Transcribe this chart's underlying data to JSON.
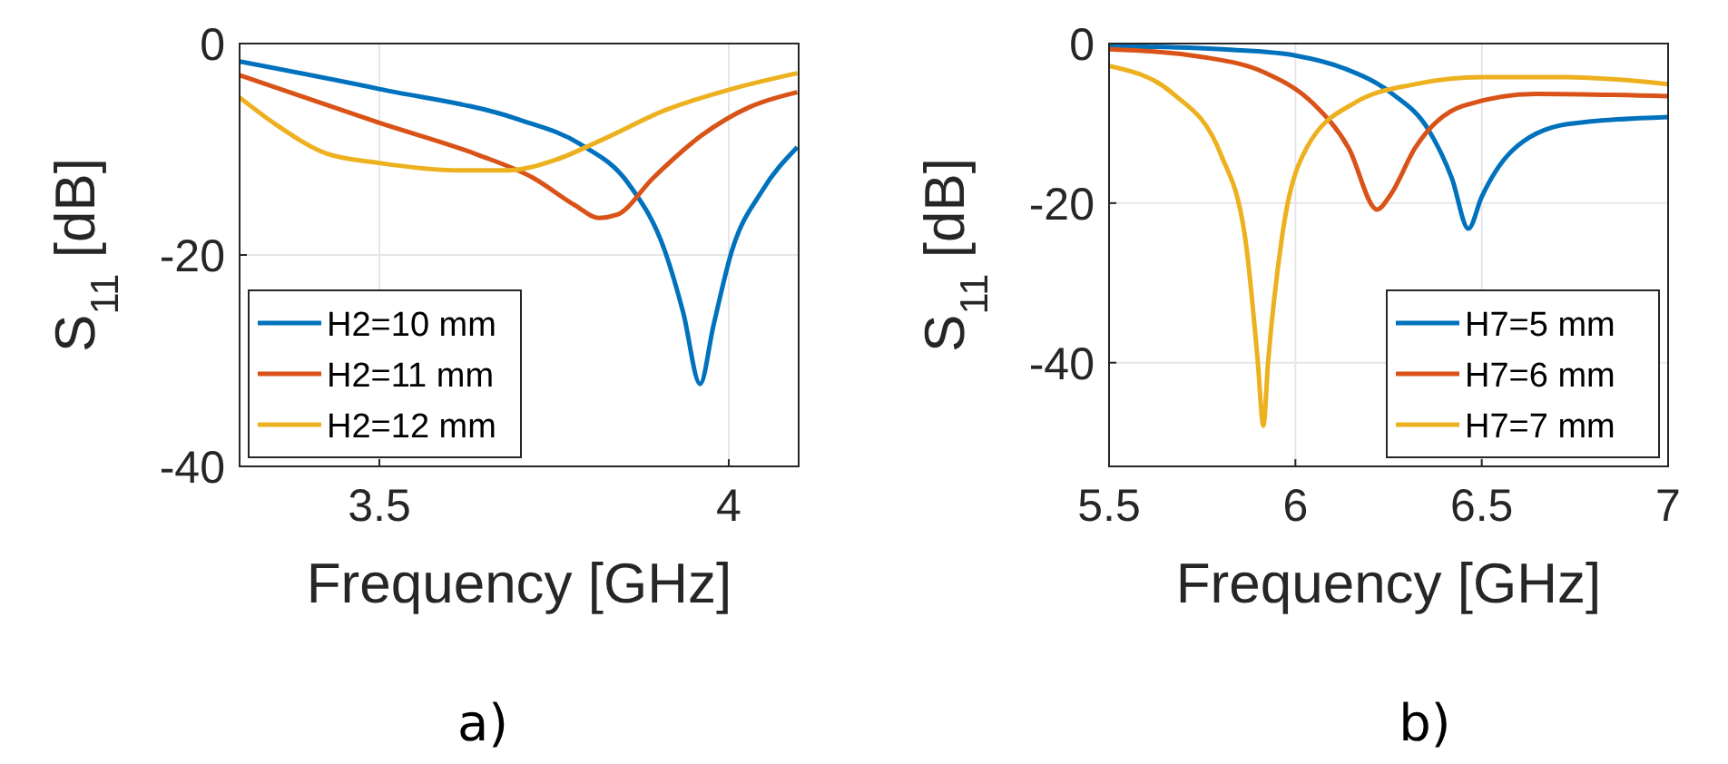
{
  "chart_data": [
    {
      "type": "line",
      "xlabel": "Frequency [GHz]",
      "ylabel": "S$_{11}$ [dB]",
      "xlim": [
        3.3,
        4.1
      ],
      "ylim": [
        -40,
        0
      ],
      "xticks": [
        3.5,
        4
      ],
      "yticks": [
        -40,
        -20,
        0
      ],
      "grid": true,
      "legend": "bottom left",
      "annotations": [
        "a)"
      ],
      "series": [
        {
          "name": "H2=10 mm",
          "color": "#0072bd",
          "x": [
            3.3,
            3.5,
            3.7,
            3.787,
            3.857,
            3.909,
            3.935,
            3.959,
            3.978,
            4.004,
            4.048,
            4.098
          ],
          "values": [
            -1.7,
            -4.3,
            -7.2,
            -9.5,
            -13.3,
            -19.7,
            -25.5,
            -32.2,
            -26.7,
            -19.7,
            -13.9,
            -9.8
          ]
        },
        {
          "name": "H2=11 mm",
          "color": "#d95319",
          "x": [
            3.3,
            3.5,
            3.64,
            3.72,
            3.78,
            3.814,
            3.84,
            3.892,
            3.961,
            4.03,
            4.098
          ],
          "values": [
            -3.0,
            -7.5,
            -10.5,
            -12.7,
            -15.3,
            -16.5,
            -16.2,
            -12.7,
            -8.7,
            -6.0,
            -4.6
          ]
        },
        {
          "name": "H2=12 mm",
          "color": "#edb120",
          "x": [
            3.3,
            3.355,
            3.424,
            3.5,
            3.614,
            3.683,
            3.752,
            3.822,
            3.909,
            4.004,
            4.098
          ],
          "values": [
            -5.1,
            -7.8,
            -10.4,
            -11.3,
            -12.0,
            -12.0,
            -11.0,
            -9.0,
            -6.3,
            -4.3,
            -2.8
          ]
        }
      ]
    },
    {
      "type": "line",
      "xlabel": "Frequency [GHz]",
      "ylabel": "S$_{11}$ [dB]",
      "xlim": [
        5.5,
        7
      ],
      "ylim": [
        -53,
        0
      ],
      "xticks": [
        5.5,
        6,
        6.5,
        7
      ],
      "yticks": [
        -40,
        -20,
        0
      ],
      "grid": true,
      "legend": "bottom right",
      "annotations": [
        "b)"
      ],
      "series": [
        {
          "name": "H7=5 mm",
          "color": "#0072bd",
          "x": [
            5.5,
            5.834,
            6,
            6.13,
            6.26,
            6.357,
            6.42,
            6.464,
            6.5,
            6.58,
            6.73,
            7
          ],
          "values": [
            -0.3,
            -0.8,
            -1.5,
            -3.1,
            -6.3,
            -10.8,
            -16.9,
            -23.2,
            -19.2,
            -13.5,
            -10.1,
            -9.2
          ]
        },
        {
          "name": "H7=6 mm",
          "color": "#d95319",
          "x": [
            5.5,
            5.753,
            5.916,
            6.045,
            6.143,
            6.219,
            6.256,
            6.321,
            6.45,
            6.646,
            7
          ],
          "values": [
            -0.7,
            -1.7,
            -3.6,
            -7.4,
            -13.1,
            -20.8,
            -18.9,
            -13.1,
            -7.8,
            -6.3,
            -6.6
          ]
        },
        {
          "name": "H7=7 mm",
          "color": "#edb120",
          "x": [
            5.5,
            5.672,
            5.8,
            5.866,
            5.899,
            5.914,
            5.927,
            5.963,
            6.03,
            6.16,
            6.32,
            6.5,
            6.727,
            7
          ],
          "values": [
            -2.8,
            -6.3,
            -13.9,
            -24.6,
            -39.8,
            -47.9,
            -39.8,
            -24.6,
            -13.1,
            -7.4,
            -5.1,
            -4.2,
            -4.2,
            -5.1
          ]
        }
      ]
    }
  ]
}
